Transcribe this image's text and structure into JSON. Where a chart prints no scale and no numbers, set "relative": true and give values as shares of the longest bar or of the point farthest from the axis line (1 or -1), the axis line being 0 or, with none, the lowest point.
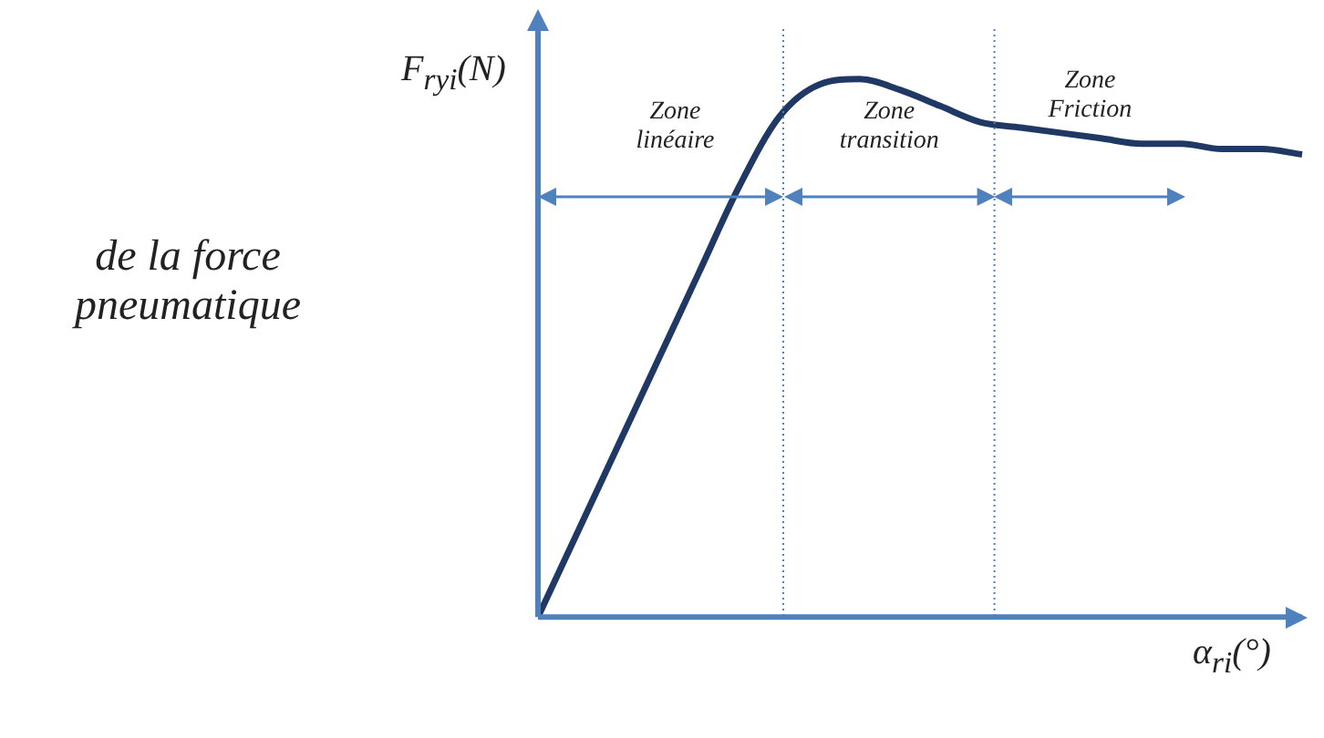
{
  "chart_data": {
    "type": "line",
    "relative": true,
    "xlabel": "α$_{ri}$(°)",
    "ylabel": "F$_{ryi}$(N)",
    "categories": [
      null,
      null,
      null,
      null,
      null,
      null,
      null,
      null,
      null,
      null,
      null,
      null,
      null,
      null,
      null,
      null,
      null,
      null,
      null,
      null
    ],
    "series": [
      {
        "color": "#1f3864",
        "values": [
          0,
          0.16,
          0.32,
          0.48,
          0.64,
          0.8,
          0.93,
          0.99,
          1,
          0.98,
          0.95,
          0.92,
          0.91,
          0.9,
          0.89,
          0.88,
          0.88,
          0.87,
          0.87,
          0.86
        ]
      }
    ],
    "annotations": [
      "Zone\nlinéaire",
      "Zone\ntransition",
      "Zone\nFriction",
      "de la force\npneumatique"
    ],
    "grid": false,
    "legend": false,
    "marker": "none",
    "line_style": "solid"
  }
}
